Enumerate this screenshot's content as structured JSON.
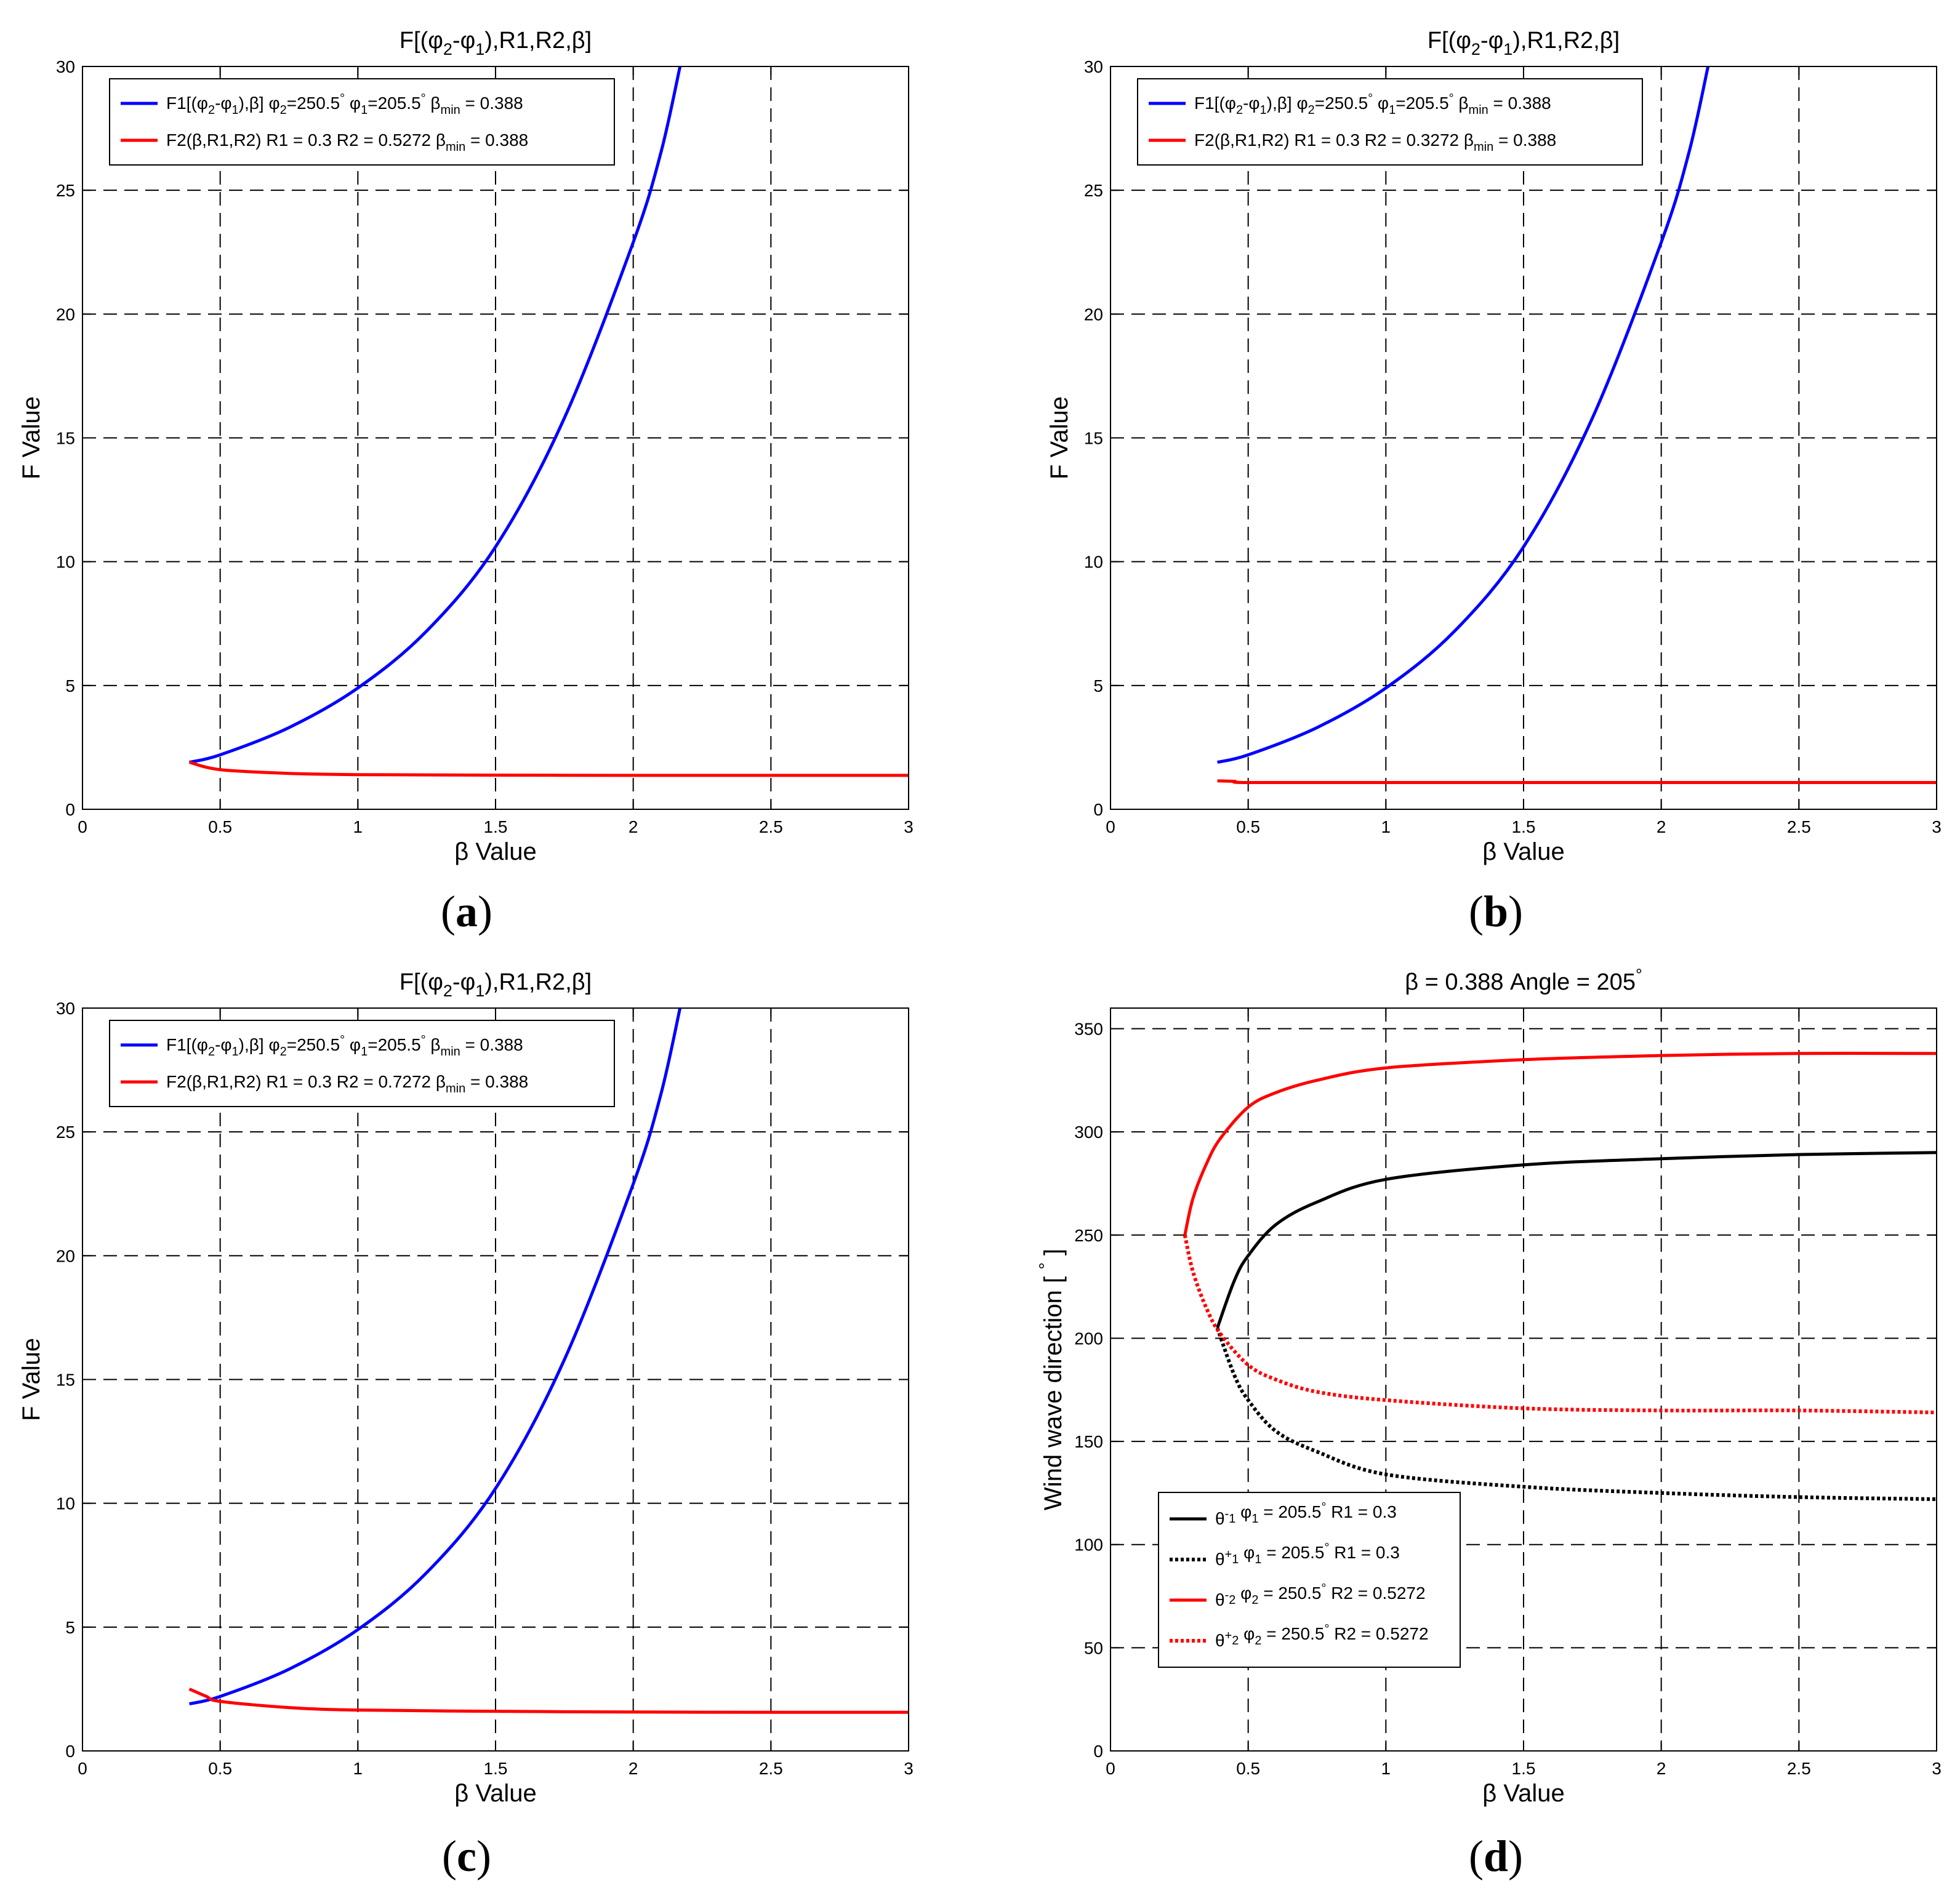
{
  "figure": {
    "captions": [
      "a",
      "b",
      "c",
      "d"
    ]
  },
  "chart_data": [
    {
      "id": "a",
      "type": "line",
      "title": "F[(φ2-φ1),R1,R2,β]",
      "xlabel": "β Value",
      "ylabel": "F Value",
      "xlim": [
        0,
        3
      ],
      "ylim": [
        0,
        30
      ],
      "xticks": [
        "0",
        "0.5",
        "1",
        "1.5",
        "2",
        "2.5",
        "3"
      ],
      "yticks": [
        "0",
        "5",
        "10",
        "15",
        "20",
        "25",
        "30"
      ],
      "grid": true,
      "legend_position": "top-left",
      "series": [
        {
          "name": "F1[(φ2-φ1),β]  φ2=250.5° φ1=205.5°   βmin = 0.388",
          "color": "#0000ff",
          "style": "solid",
          "x": [
            0.388,
            0.5,
            0.75,
            1.0,
            1.25,
            1.5,
            1.75,
            2.0,
            2.1,
            2.17
          ],
          "y": [
            1.9,
            2.2,
            3.3,
            4.9,
            7.2,
            10.6,
            15.8,
            22.9,
            26.5,
            30
          ]
        },
        {
          "name": "F2(β,R1,R2)  R1 = 0.3  R2 = 0.5272   βmin = 0.388",
          "color": "#ff0000",
          "style": "solid",
          "x": [
            0.388,
            0.5,
            0.75,
            1.0,
            1.5,
            2.0,
            2.5,
            3.0
          ],
          "y": [
            1.9,
            1.6,
            1.45,
            1.4,
            1.38,
            1.37,
            1.37,
            1.37
          ]
        }
      ]
    },
    {
      "id": "b",
      "type": "line",
      "title": "F[(φ2-φ1),R1,R2,β]",
      "xlabel": "β Value",
      "ylabel": "F Value",
      "xlim": [
        0,
        3
      ],
      "ylim": [
        0,
        30
      ],
      "xticks": [
        "0",
        "0.5",
        "1",
        "1.5",
        "2",
        "2.5",
        "3"
      ],
      "yticks": [
        "0",
        "5",
        "10",
        "15",
        "20",
        "25",
        "30"
      ],
      "grid": true,
      "legend_position": "top-left",
      "series": [
        {
          "name": "F1[(φ2-φ1),β]  φ2=250.5° φ1=205.5°   βmin = 0.388",
          "color": "#0000ff",
          "style": "solid",
          "x": [
            0.388,
            0.5,
            0.75,
            1.0,
            1.25,
            1.5,
            1.75,
            2.0,
            2.1,
            2.17
          ],
          "y": [
            1.9,
            2.2,
            3.3,
            4.9,
            7.2,
            10.6,
            15.8,
            22.9,
            26.5,
            30
          ]
        },
        {
          "name": "F2(β,R1,R2)  R1 = 0.3  R2 = 0.3272   βmin = 0.388",
          "color": "#ff0000",
          "style": "solid",
          "x": [
            0.388,
            0.45,
            0.5,
            1.0,
            2.0,
            3.0
          ],
          "y": [
            1.15,
            1.13,
            1.08,
            1.08,
            1.08,
            1.08
          ]
        }
      ]
    },
    {
      "id": "c",
      "type": "line",
      "title": "F[(φ2-φ1),R1,R2,β]",
      "xlabel": "β Value",
      "ylabel": "F Value",
      "xlim": [
        0,
        3
      ],
      "ylim": [
        0,
        30
      ],
      "xticks": [
        "0",
        "0.5",
        "1",
        "1.5",
        "2",
        "2.5",
        "3"
      ],
      "yticks": [
        "0",
        "5",
        "10",
        "15",
        "20",
        "25",
        "30"
      ],
      "grid": true,
      "legend_position": "top-left",
      "series": [
        {
          "name": "F1[(φ2-φ1),β]  φ2=250.5° φ1=205.5°   βmin = 0.388",
          "color": "#0000ff",
          "style": "solid",
          "x": [
            0.388,
            0.5,
            0.75,
            1.0,
            1.25,
            1.5,
            1.75,
            2.0,
            2.1,
            2.17
          ],
          "y": [
            1.9,
            2.2,
            3.3,
            4.9,
            7.2,
            10.6,
            15.8,
            22.9,
            26.5,
            30
          ]
        },
        {
          "name": "F2(β,R1,R2)  R1 = 0.3  R2 = 0.7272   βmin = 0.388",
          "color": "#ff0000",
          "style": "solid",
          "x": [
            0.388,
            0.45,
            0.5,
            0.75,
            1.0,
            1.5,
            2.0,
            2.5,
            3.0
          ],
          "y": [
            2.5,
            2.2,
            2.0,
            1.75,
            1.65,
            1.6,
            1.57,
            1.56,
            1.56
          ]
        }
      ]
    },
    {
      "id": "d",
      "type": "line",
      "title": "β = 0.388   Angle = 205°",
      "xlabel": "β Value",
      "ylabel": "Wind wave direction [°]",
      "xlim": [
        0,
        3
      ],
      "ylim": [
        0,
        360
      ],
      "xticks": [
        "0",
        "0.5",
        "1",
        "1.5",
        "2",
        "2.5",
        "3"
      ],
      "yticks": [
        "0",
        "50",
        "100",
        "150",
        "200",
        "250",
        "300",
        "350"
      ],
      "grid": true,
      "legend_position": "bottom-left",
      "series": [
        {
          "name": "θ1⁻ φ1 = 205.5°  R1 = 0.3",
          "color": "#000000",
          "style": "solid",
          "x": [
            0.388,
            0.45,
            0.5,
            0.6,
            0.75,
            1.0,
            1.5,
            2.0,
            2.5,
            3.0
          ],
          "y": [
            205,
            228,
            240,
            255,
            266,
            277,
            284,
            287,
            289,
            290
          ]
        },
        {
          "name": "θ1⁺ φ1 = 205.5°  R1 = 0.3",
          "color": "#000000",
          "style": "dotted",
          "x": [
            0.388,
            0.45,
            0.5,
            0.6,
            0.75,
            1.0,
            1.5,
            2.0,
            2.5,
            3.0
          ],
          "y": [
            205,
            182,
            170,
            155,
            145,
            134,
            128,
            125,
            123,
            122
          ]
        },
        {
          "name": "θ2⁻ φ2 = 250.5°  R2 = 0.5272",
          "color": "#ff0000",
          "style": "solid",
          "x": [
            0.27,
            0.3,
            0.35,
            0.4,
            0.5,
            0.6,
            0.75,
            1.0,
            1.5,
            2.0,
            2.5,
            3.0
          ],
          "y": [
            250,
            268,
            285,
            297,
            312,
            319,
            325,
            331,
            335,
            337,
            338,
            338
          ]
        },
        {
          "name": "θ2⁺ φ2 = 250.5°  R2 = 0.5272",
          "color": "#ff0000",
          "style": "dotted",
          "x": [
            0.27,
            0.3,
            0.35,
            0.4,
            0.5,
            0.6,
            0.75,
            1.0,
            1.5,
            2.0,
            2.5,
            3.0
          ],
          "y": [
            250,
            232,
            214,
            202,
            187,
            180,
            174,
            170,
            166,
            165,
            165,
            164
          ]
        }
      ]
    }
  ]
}
